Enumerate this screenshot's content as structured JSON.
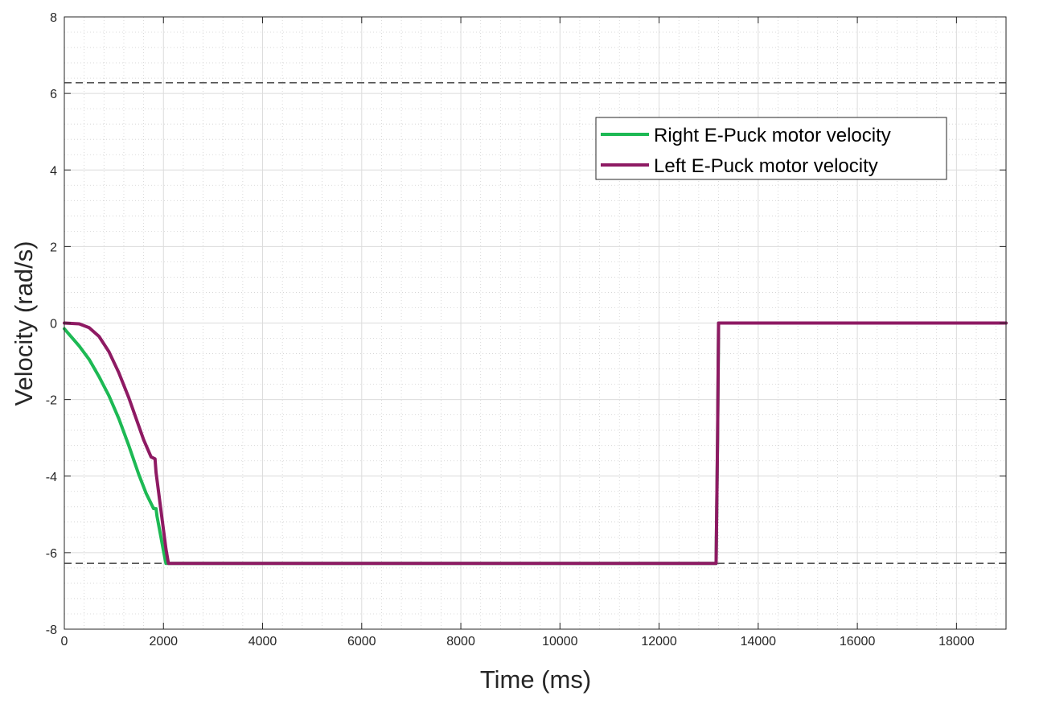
{
  "chart_data": {
    "type": "line",
    "xlabel": "Time (ms)",
    "ylabel": "Velocity (rad/s)",
    "xlim": [
      0,
      19000
    ],
    "ylim": [
      -8,
      8
    ],
    "xticks": [
      0,
      2000,
      4000,
      6000,
      8000,
      10000,
      12000,
      14000,
      16000,
      18000
    ],
    "xtick_labels": [
      "0",
      "2000",
      "4000",
      "6000",
      "8000",
      "10000",
      "12000",
      "14000",
      "16000",
      "18000"
    ],
    "yticks": [
      8,
      6,
      4,
      2,
      0,
      -2,
      -4,
      -6,
      -8
    ],
    "ytick_labels": [
      "8",
      "6",
      "4",
      "2",
      "0",
      "-2",
      "-4",
      "-6",
      "-8"
    ],
    "grid": true,
    "minor_grid": true,
    "legend_position": "upper-right",
    "reference_lines": [
      6.28,
      -6.28
    ],
    "colors": {
      "right": "#1db954",
      "left": "#8e1a63",
      "reference": "#555555"
    },
    "series": [
      {
        "name": "Right E-Puck motor velocity",
        "x": [
          0,
          100,
          300,
          500,
          700,
          900,
          1100,
          1300,
          1500,
          1650,
          1800,
          1850,
          1870,
          1950,
          2000,
          2050,
          2070,
          13150,
          13180,
          13200,
          19000
        ],
        "y": [
          -0.15,
          -0.3,
          -0.6,
          -0.95,
          -1.4,
          -1.9,
          -2.5,
          -3.2,
          -3.95,
          -4.45,
          -4.85,
          -4.85,
          -5.05,
          -5.6,
          -5.95,
          -6.28,
          -6.28,
          -6.28,
          -3.0,
          0,
          0
        ]
      },
      {
        "name": "Left E-Puck motor velocity",
        "x": [
          0,
          300,
          500,
          700,
          900,
          1100,
          1300,
          1450,
          1600,
          1750,
          1830,
          1850,
          1900,
          1950,
          2000,
          2050,
          2100,
          2150,
          13150,
          13180,
          13200,
          19000
        ],
        "y": [
          0,
          -0.02,
          -0.12,
          -0.35,
          -0.75,
          -1.3,
          -1.95,
          -2.5,
          -3.05,
          -3.5,
          -3.55,
          -3.9,
          -4.4,
          -4.9,
          -5.4,
          -5.9,
          -6.28,
          -6.28,
          -6.28,
          -3.0,
          0,
          0
        ]
      }
    ]
  }
}
